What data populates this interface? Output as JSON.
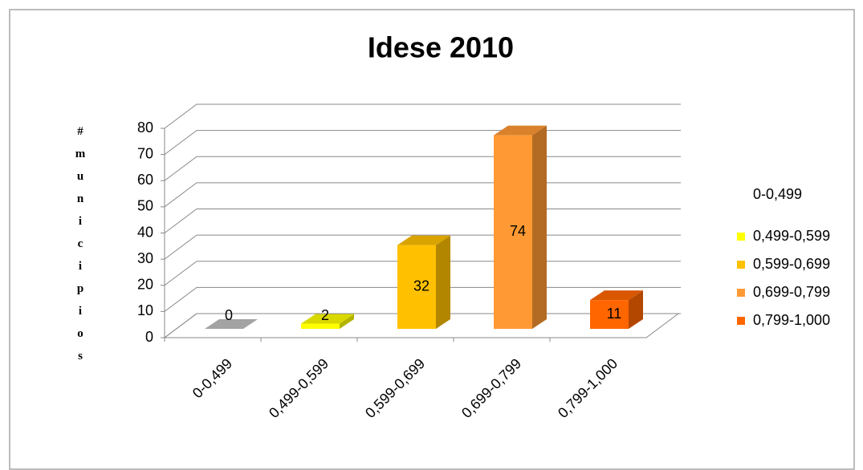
{
  "chart_data": {
    "type": "bar3d",
    "title": "Idese 2010",
    "y_label": "#municipios",
    "categories": [
      "0-0,499",
      "0,499-0,599",
      "0,599-0,699",
      "0,699-0,799",
      "0,799-1,000"
    ],
    "values": [
      0,
      2,
      32,
      74,
      11
    ],
    "colors": [
      "#c0c0c0",
      "#ffff00",
      "#ffc000",
      "#ff9933",
      "#ff6600"
    ],
    "ylim": [
      0,
      80
    ],
    "yticks": [
      0,
      10,
      20,
      30,
      40,
      50,
      60,
      70,
      80
    ],
    "grid": true,
    "legend": "right"
  }
}
